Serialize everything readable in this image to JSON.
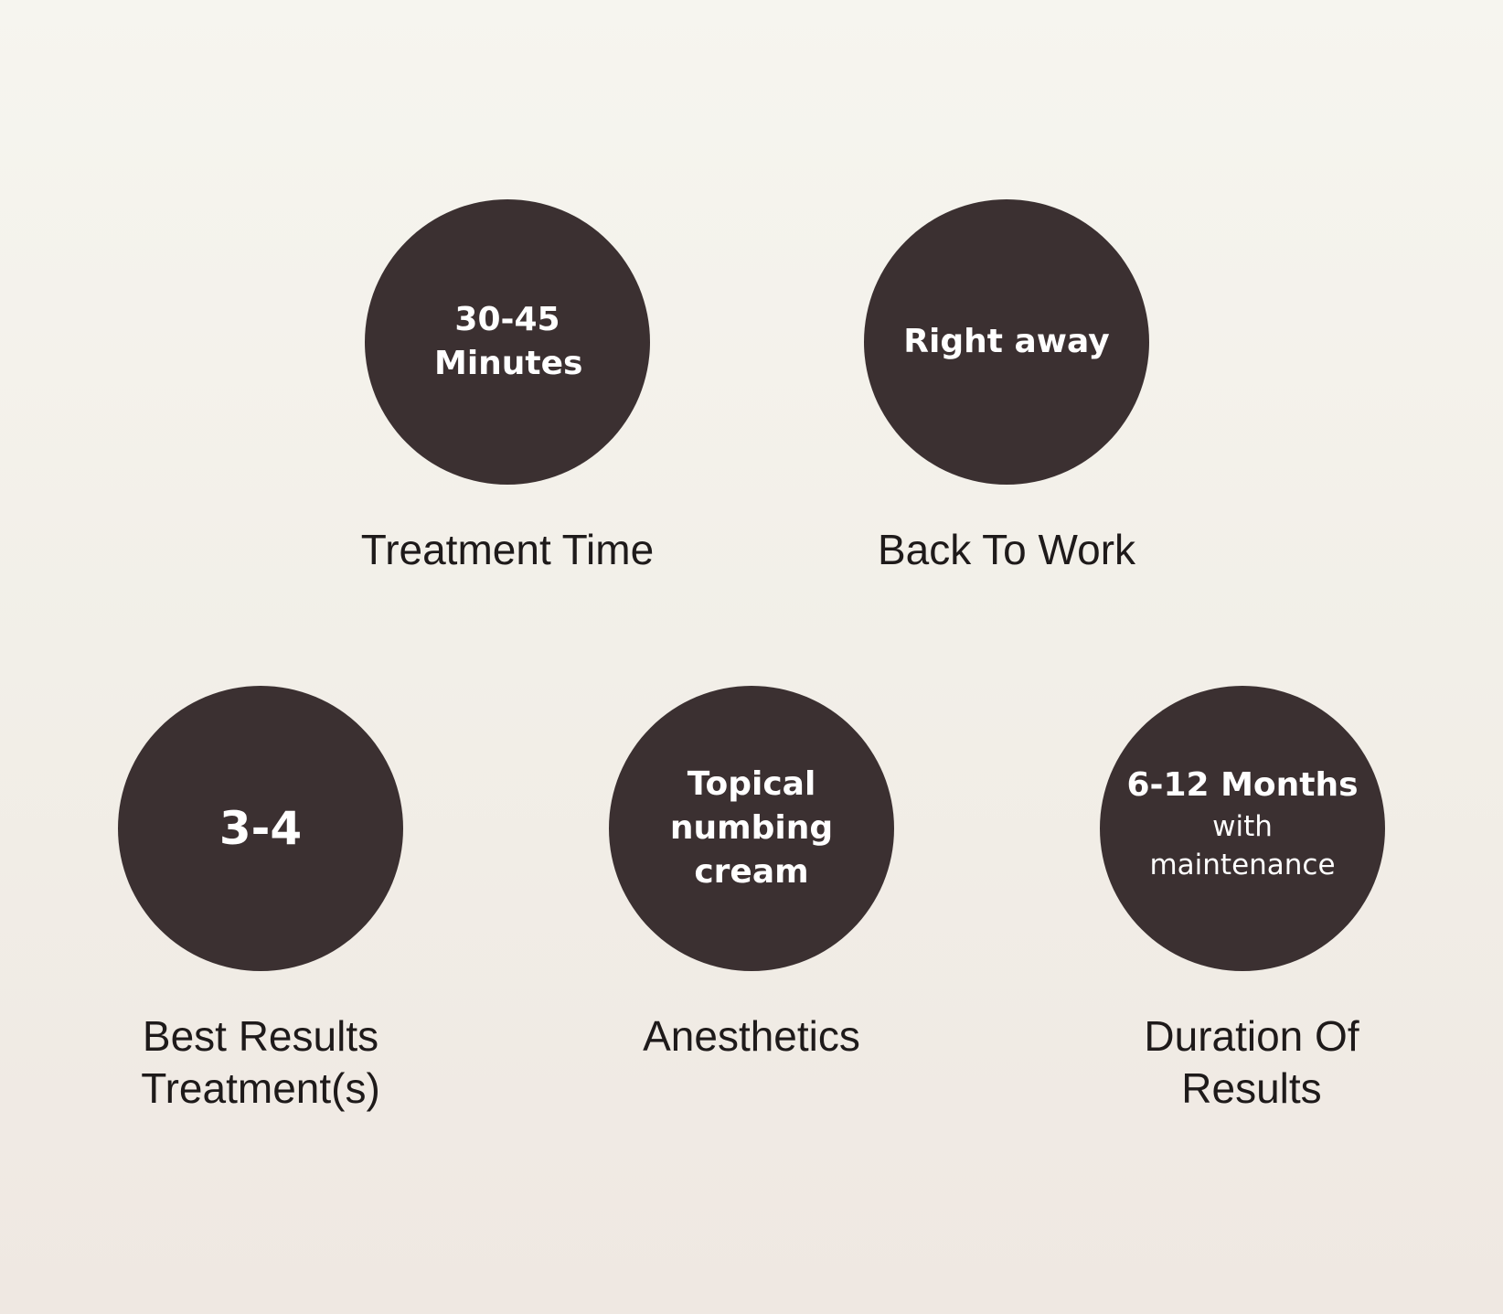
{
  "items": [
    {
      "value": "30-45 Minutes",
      "sub": "",
      "label": "Treatment Time"
    },
    {
      "value": "Right away",
      "sub": "",
      "label": "Back To Work"
    },
    {
      "value": "3-4",
      "sub": "",
      "label": "Best Results Treatment(s)"
    },
    {
      "value": "Topical numbing cream",
      "sub": "",
      "label": "Anesthetics"
    },
    {
      "value": "6-12 Months",
      "sub": "with maintenance",
      "label": "Duration Of Results"
    }
  ],
  "colors": {
    "circle": "#3b3031",
    "text": "#ffffff",
    "label": "#1e1a1a"
  }
}
